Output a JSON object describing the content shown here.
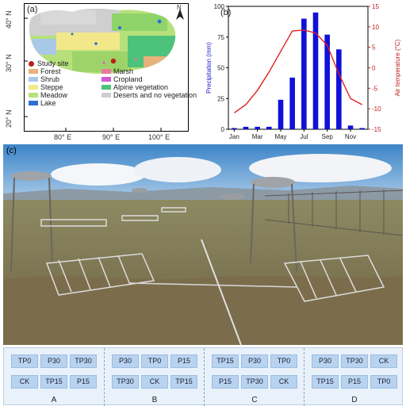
{
  "panel_a": {
    "label": "(a)",
    "north": "N",
    "lat_ticks": [
      "40° N",
      "30° N",
      "20° N"
    ],
    "lon_ticks": [
      "80° E",
      "90° E",
      "100° E"
    ],
    "legend": [
      {
        "label": "Study site",
        "color": "#b8231a",
        "kind": "dot"
      },
      {
        "label": "Forest",
        "color": "#e8b27c",
        "kind": "swatch"
      },
      {
        "label": "Shrub",
        "color": "#a9c8e8",
        "kind": "swatch"
      },
      {
        "label": "Steppe",
        "color": "#f2e88a",
        "kind": "swatch"
      },
      {
        "label": "Meadow",
        "color": "#b6e07a",
        "kind": "swatch"
      },
      {
        "label": "Lake",
        "color": "#2d6fd0",
        "kind": "swatch"
      },
      {
        "label": "Marsh",
        "color": "#e87a9a",
        "kind": "swatch"
      },
      {
        "label": "Cropland",
        "color": "#d05ad0",
        "kind": "swatch"
      },
      {
        "label": "Alpine vegetation",
        "color": "#4dc27a",
        "kind": "swatch"
      },
      {
        "label": "Deserts and no vegetation",
        "color": "#cfcfcf",
        "kind": "swatch"
      }
    ]
  },
  "panel_b": {
    "label": "(b)"
  },
  "chart_data": {
    "type": "bar",
    "categories": [
      "Jan",
      "Feb",
      "Mar",
      "Apr",
      "May",
      "Jun",
      "Jul",
      "Aug",
      "Sep",
      "Oct",
      "Nov",
      "Dec"
    ],
    "x_tick_labels": [
      "Jan",
      "Mar",
      "May",
      "Jul",
      "Sep",
      "Nov"
    ],
    "xlabel": "",
    "series": [
      {
        "name": "Precipitation (mm)",
        "type": "bar",
        "axis": "left",
        "color": "#1010d8",
        "values": [
          1,
          2,
          2,
          2,
          24,
          42,
          90,
          95,
          77,
          65,
          3,
          1
        ]
      },
      {
        "name": "Air temperature (°C)",
        "type": "line",
        "axis": "right",
        "color": "#e02020",
        "values": [
          -11,
          -9,
          -5.5,
          -1,
          4,
          9,
          9.2,
          8.5,
          5.5,
          -1.5,
          -7.5,
          -9
        ]
      }
    ],
    "ylabel_left": "Precipitation (mm)",
    "ylabel_right": "Air temperature (°C)",
    "ylim_left": [
      0,
      100
    ],
    "yticks_left": [
      0,
      25,
      50,
      75,
      100
    ],
    "ylim_right": [
      -15,
      15
    ],
    "yticks_right": [
      -15,
      -10,
      -5,
      0,
      5,
      10,
      15
    ],
    "grid": false,
    "legend": "none"
  },
  "panel_c": {
    "label": "(c)",
    "blocks": [
      {
        "name": "A",
        "rows": [
          [
            "TP0",
            "P30",
            "TP30"
          ],
          [
            "CK",
            "TP15",
            "P15"
          ]
        ]
      },
      {
        "name": "B",
        "rows": [
          [
            "P30",
            "TP0",
            "P15"
          ],
          [
            "TP30",
            "CK",
            "TP15"
          ]
        ]
      },
      {
        "name": "C",
        "rows": [
          [
            "TP15",
            "P30",
            "TP0"
          ],
          [
            "P15",
            "TP30",
            "CK"
          ]
        ]
      },
      {
        "name": "D",
        "rows": [
          [
            "P30",
            "TP30",
            "CK"
          ],
          [
            "TP15",
            "P15",
            "TP0"
          ]
        ]
      }
    ]
  }
}
